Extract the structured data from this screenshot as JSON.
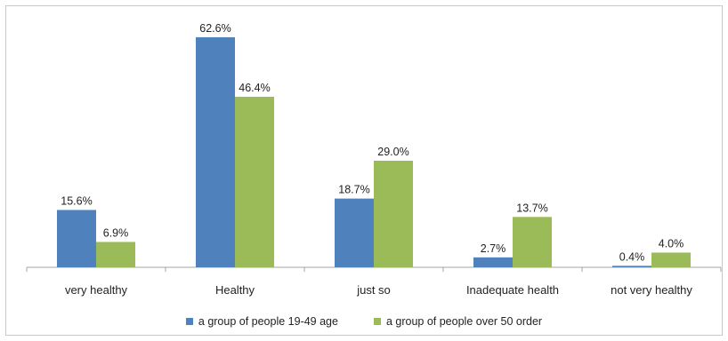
{
  "chart_data": {
    "type": "bar",
    "categories": [
      "very healthy",
      "Healthy",
      "just so",
      "Inadequate health",
      "not very healthy"
    ],
    "series": [
      {
        "name": "a group of people 19-49 age",
        "values": [
          15.6,
          62.6,
          18.7,
          2.7,
          0.4
        ],
        "labels": [
          "15.6%",
          "62.6%",
          "18.7%",
          "2.7%",
          "0.4%"
        ],
        "color": "#4f81bd"
      },
      {
        "name": "a group of people over 50 order",
        "values": [
          6.9,
          46.4,
          29.0,
          13.7,
          4.0
        ],
        "labels": [
          "6.9%",
          "46.4%",
          "29.0%",
          "13.7%",
          "4.0%"
        ],
        "color": "#9bbb59"
      }
    ],
    "ylim": [
      0,
      65
    ],
    "grid": false,
    "legend_position": "bottom"
  }
}
